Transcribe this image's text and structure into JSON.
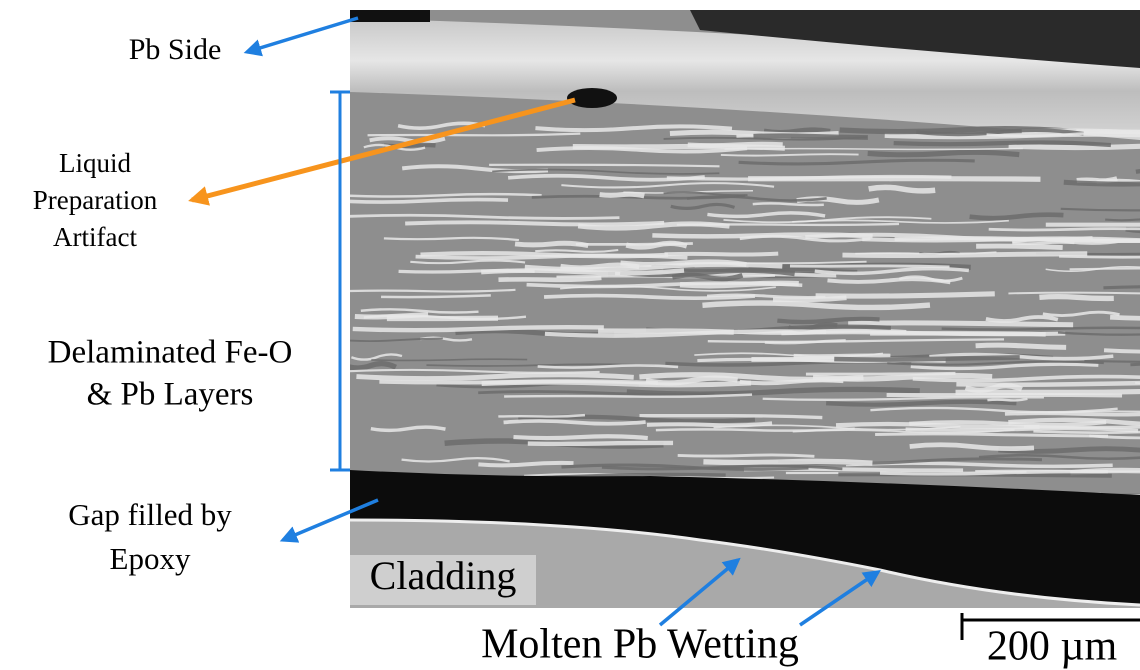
{
  "labels": {
    "pb_side": "Pb Side",
    "artifact": [
      "Liquid",
      "Preparation",
      "Artifact"
    ],
    "layers": [
      "Delaminated Fe-O",
      "& Pb Layers"
    ],
    "gap": [
      "Gap filled by",
      "Epoxy"
    ],
    "cladding": "Cladding",
    "wetting": "Molten Pb Wetting"
  },
  "scale_bar": "200 µm"
}
